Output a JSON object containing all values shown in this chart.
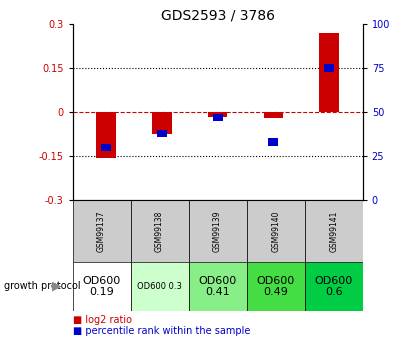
{
  "title": "GDS2593 / 3786",
  "samples": [
    "GSM99137",
    "GSM99138",
    "GSM99139",
    "GSM99140",
    "GSM99141"
  ],
  "log2_ratio": [
    -0.155,
    -0.075,
    -0.015,
    -0.02,
    0.27
  ],
  "percentile_rank": [
    30,
    38,
    47,
    33,
    75
  ],
  "ylim_left": [
    -0.3,
    0.3
  ],
  "ylim_right": [
    0,
    100
  ],
  "yticks_left": [
    -0.3,
    -0.15,
    0,
    0.15,
    0.3
  ],
  "yticks_right": [
    0,
    25,
    50,
    75,
    100
  ],
  "hlines": [
    0.15,
    -0.15
  ],
  "red_color": "#cc0000",
  "blue_color": "#0000cc",
  "dashed_line_color": "#cc0000",
  "dotted_line_color": "#000000",
  "growth_protocol_labels": [
    "OD600\n0.19",
    "OD600 0.3",
    "OD600\n0.41",
    "OD600\n0.49",
    "OD600\n0.6"
  ],
  "growth_protocol_colors": [
    "#ffffff",
    "#ccffcc",
    "#88ee88",
    "#44dd44",
    "#00cc44"
  ],
  "growth_protocol_fontsizes": [
    8,
    6,
    8,
    8,
    8
  ],
  "table_header_color": "#cccccc",
  "legend_red": "log2 ratio",
  "legend_blue": "percentile rank within the sample",
  "growth_protocol_text": "growth protocol"
}
